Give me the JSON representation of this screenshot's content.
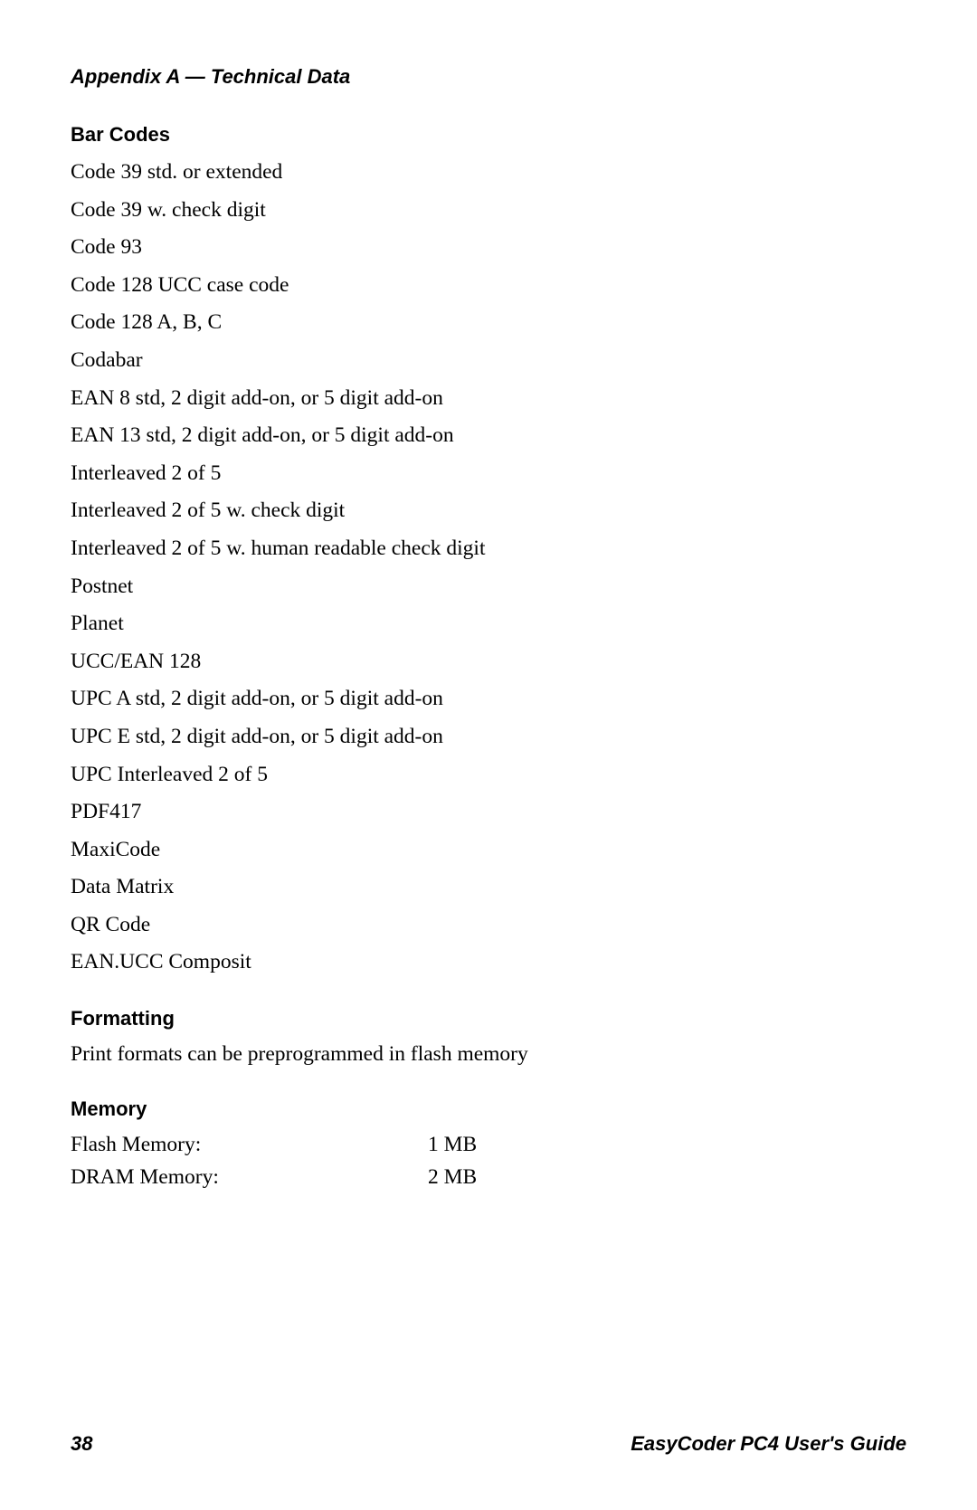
{
  "header": {
    "appendix_title": "Appendix A — Technical Data"
  },
  "barcodes": {
    "heading": "Bar Codes",
    "items": [
      "Code 39 std. or extended",
      "Code 39 w. check digit",
      "Code 93",
      "Code 128 UCC case code",
      "Code 128 A, B, C",
      "Codabar",
      "EAN 8 std, 2 digit add-on, or 5 digit add-on",
      "EAN 13 std, 2 digit add-on, or 5 digit add-on",
      "Interleaved 2 of 5",
      "Interleaved 2 of 5 w. check digit",
      "Interleaved 2 of 5 w. human readable check digit",
      "Postnet",
      "Planet",
      "UCC/EAN 128",
      "UPC A std, 2 digit add-on, or 5 digit add-on",
      "UPC E std, 2 digit add-on, or 5 digit add-on",
      "UPC Interleaved 2 of 5",
      "PDF417",
      "MaxiCode",
      "Data Matrix",
      "QR Code",
      "EAN.UCC Composit"
    ]
  },
  "formatting": {
    "heading": "Formatting",
    "text": "Print formats can be preprogrammed in flash memory"
  },
  "memory": {
    "heading": "Memory",
    "rows": [
      {
        "label": "Flash Memory:",
        "value": "1 MB"
      },
      {
        "label": "DRAM Memory:",
        "value": "2 MB"
      }
    ]
  },
  "footer": {
    "page_number": "38",
    "guide_name": "EasyCoder PC4 User's Guide"
  }
}
